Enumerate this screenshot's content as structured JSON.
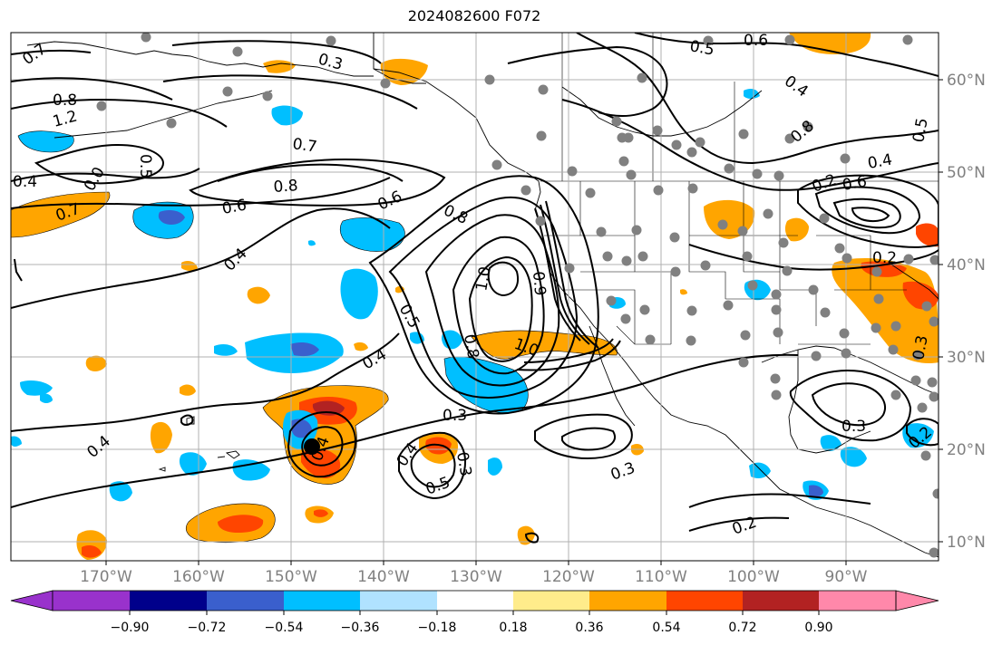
{
  "title": "2024082600 F072",
  "lon_labels": [
    "170°W",
    "160°W",
    "150°W",
    "140°W",
    "130°W",
    "120°W",
    "110°W",
    "100°W",
    "90°W"
  ],
  "lat_labels": [
    "60°N",
    "50°N",
    "40°N",
    "30°N",
    "20°N",
    "10°N"
  ],
  "colorbar": {
    "ticks": [
      "−0.90",
      "−0.72",
      "−0.54",
      "−0.36",
      "−0.18",
      "0.18",
      "0.36",
      "0.54",
      "0.72",
      "0.90"
    ],
    "colors": [
      "#9932cc",
      "#00008b",
      "#3a5fcd",
      "#00bfff",
      "#b0e2ff",
      "#ffffff",
      "#ffec8b",
      "#ffa500",
      "#ff4500",
      "#b22222",
      "#ff88aa"
    ]
  },
  "contour_labels": [
    "0.7",
    "0.8",
    "1.2",
    "0.5",
    "0.4",
    "0.0",
    "0.7",
    "0.6",
    "0.7",
    "0.8",
    "0.6",
    "0.8",
    "0.4",
    "0.3",
    "0.5",
    "1.0",
    "0.9",
    "1.0",
    "0.8",
    "0.4",
    "0.4",
    "0.3",
    "0.4",
    "0.5",
    "0.3",
    "0.4",
    "0.3",
    "0.2",
    "0.3",
    "0.5",
    "0.6",
    "0.4",
    "0.8",
    "0.2",
    "0.4",
    "0.2",
    "0.6",
    "0.3",
    "0.2",
    "0.5"
  ],
  "colors": {
    "contour": "#000000",
    "grid": "#b0b0b0",
    "coast": "#000000",
    "station": "#808080",
    "storm": "#000000"
  }
}
